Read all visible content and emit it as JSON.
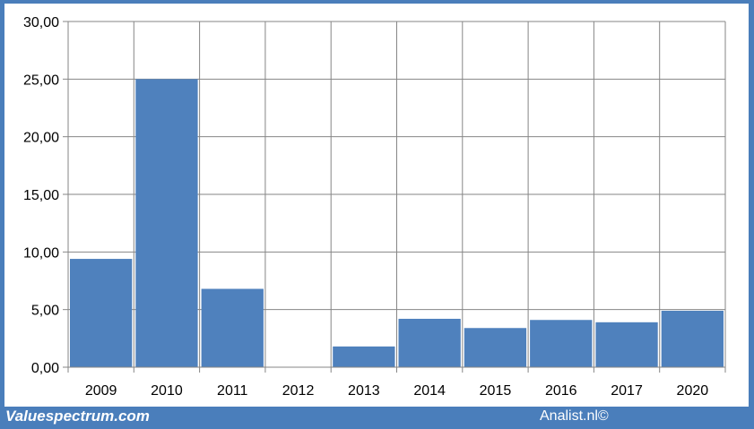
{
  "footer": {
    "left_text": "Valuespectrum.com",
    "right_text": "Analist.nl©"
  },
  "colors": {
    "frame": "#4a7ebb",
    "bar": "#4f81bd",
    "grid": "#868686"
  },
  "chart_data": {
    "type": "bar",
    "categories": [
      "2009",
      "2010",
      "2011",
      "2012",
      "2013",
      "2014",
      "2015",
      "2016",
      "2017",
      "2020"
    ],
    "values": [
      9.4,
      25.0,
      6.8,
      0,
      1.8,
      4.2,
      3.4,
      4.1,
      3.9,
      4.9
    ],
    "ylim": [
      0,
      30
    ],
    "yticks": [
      "0,00",
      "5,00",
      "10,00",
      "15,00",
      "20,00",
      "25,00",
      "30,00"
    ],
    "grid": true,
    "title": "",
    "xlabel": "",
    "ylabel": ""
  }
}
